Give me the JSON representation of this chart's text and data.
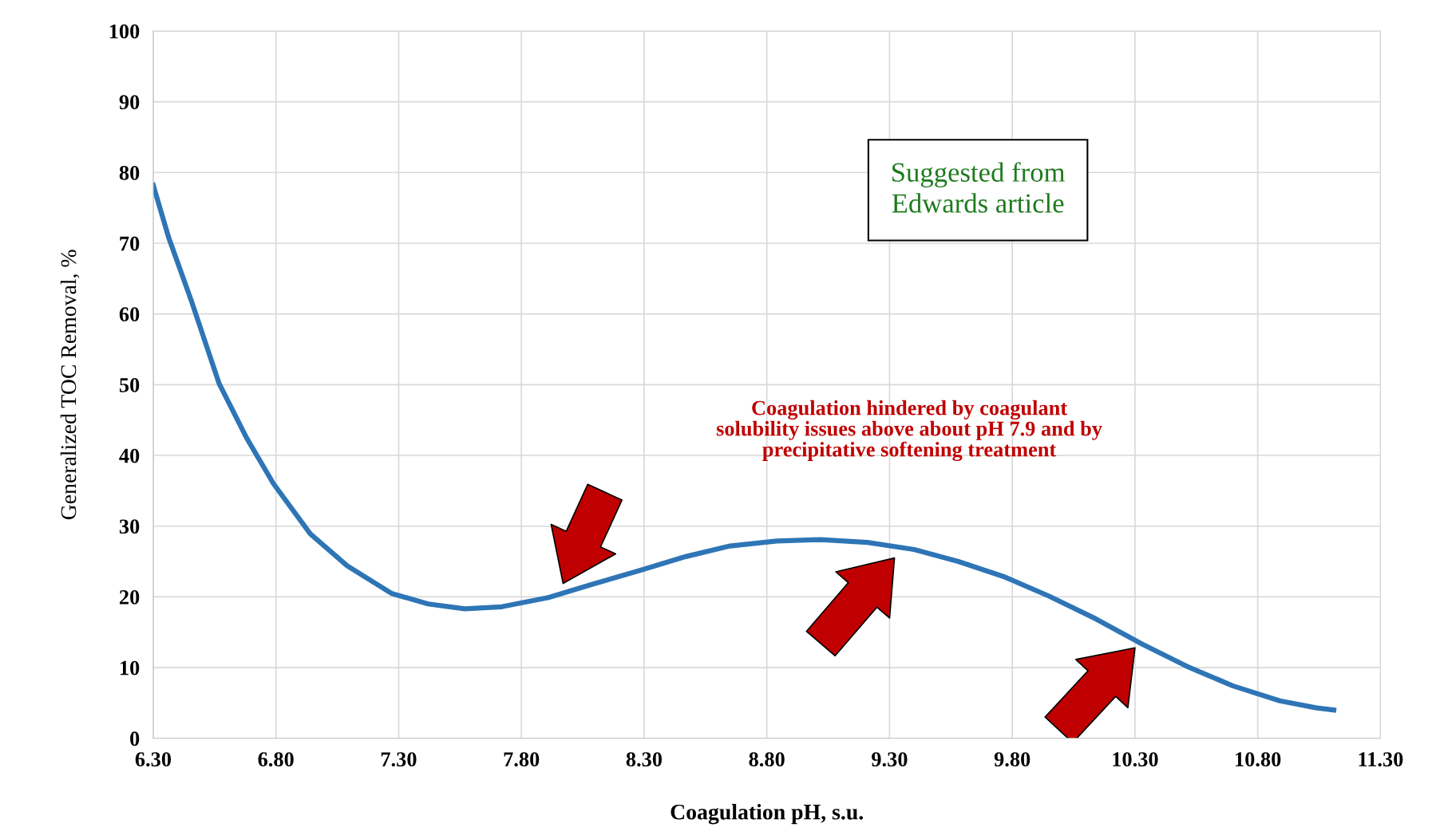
{
  "chart_data": {
    "type": "line",
    "xlabel": "Coagulation pH, s.u.",
    "ylabel": "Generalized TOC Removal, %",
    "x": [
      6.3,
      6.363,
      6.456,
      6.568,
      6.68,
      6.79,
      6.94,
      7.09,
      7.27,
      7.42,
      7.57,
      7.72,
      7.91,
      8.09,
      8.28,
      8.47,
      8.65,
      8.84,
      9.02,
      9.21,
      9.4,
      9.58,
      9.77,
      9.95,
      10.14,
      10.33,
      10.51,
      10.7,
      10.89,
      11.04,
      11.11
    ],
    "series": [
      {
        "color": "#2e75b6",
        "values": [
          78.2,
          70.8,
          61.8,
          50.2,
          42.5,
          36,
          28.9,
          24.4,
          20.5,
          19,
          18.3,
          18.6,
          19.9,
          21.8,
          23.7,
          25.7,
          27.2,
          27.9,
          28.1,
          27.7,
          26.7,
          25,
          22.8,
          20.1,
          16.9,
          13.3,
          10.2,
          7.4,
          5.3,
          4.3,
          4.0
        ]
      }
    ],
    "xlim": [
      6.3,
      11.3
    ],
    "ylim": [
      0,
      100
    ],
    "xticks": [
      {
        "value": 6.3,
        "label": "6.30"
      },
      {
        "value": 6.8,
        "label": "6.80"
      },
      {
        "value": 7.3,
        "label": "7.30"
      },
      {
        "value": 7.8,
        "label": "7.80"
      },
      {
        "value": 8.3,
        "label": "8.30"
      },
      {
        "value": 8.8,
        "label": "8.80"
      },
      {
        "value": 9.3,
        "label": "9.30"
      },
      {
        "value": 9.8,
        "label": "9.80"
      },
      {
        "value": 10.3,
        "label": "10.30"
      },
      {
        "value": 10.8,
        "label": "10.80"
      },
      {
        "value": 11.3,
        "label": "11.30"
      }
    ],
    "yticks": [
      0,
      10,
      20,
      30,
      40,
      50,
      60,
      70,
      80,
      90,
      100
    ],
    "grid": true,
    "marker": "none",
    "line_style": "solid",
    "annotations": [
      "Suggested from\nEdwards article",
      "Coagulation hindered by coagulant\nsolubility issues above about pH 7.9 and by\nprecipitative softening treatment"
    ]
  }
}
